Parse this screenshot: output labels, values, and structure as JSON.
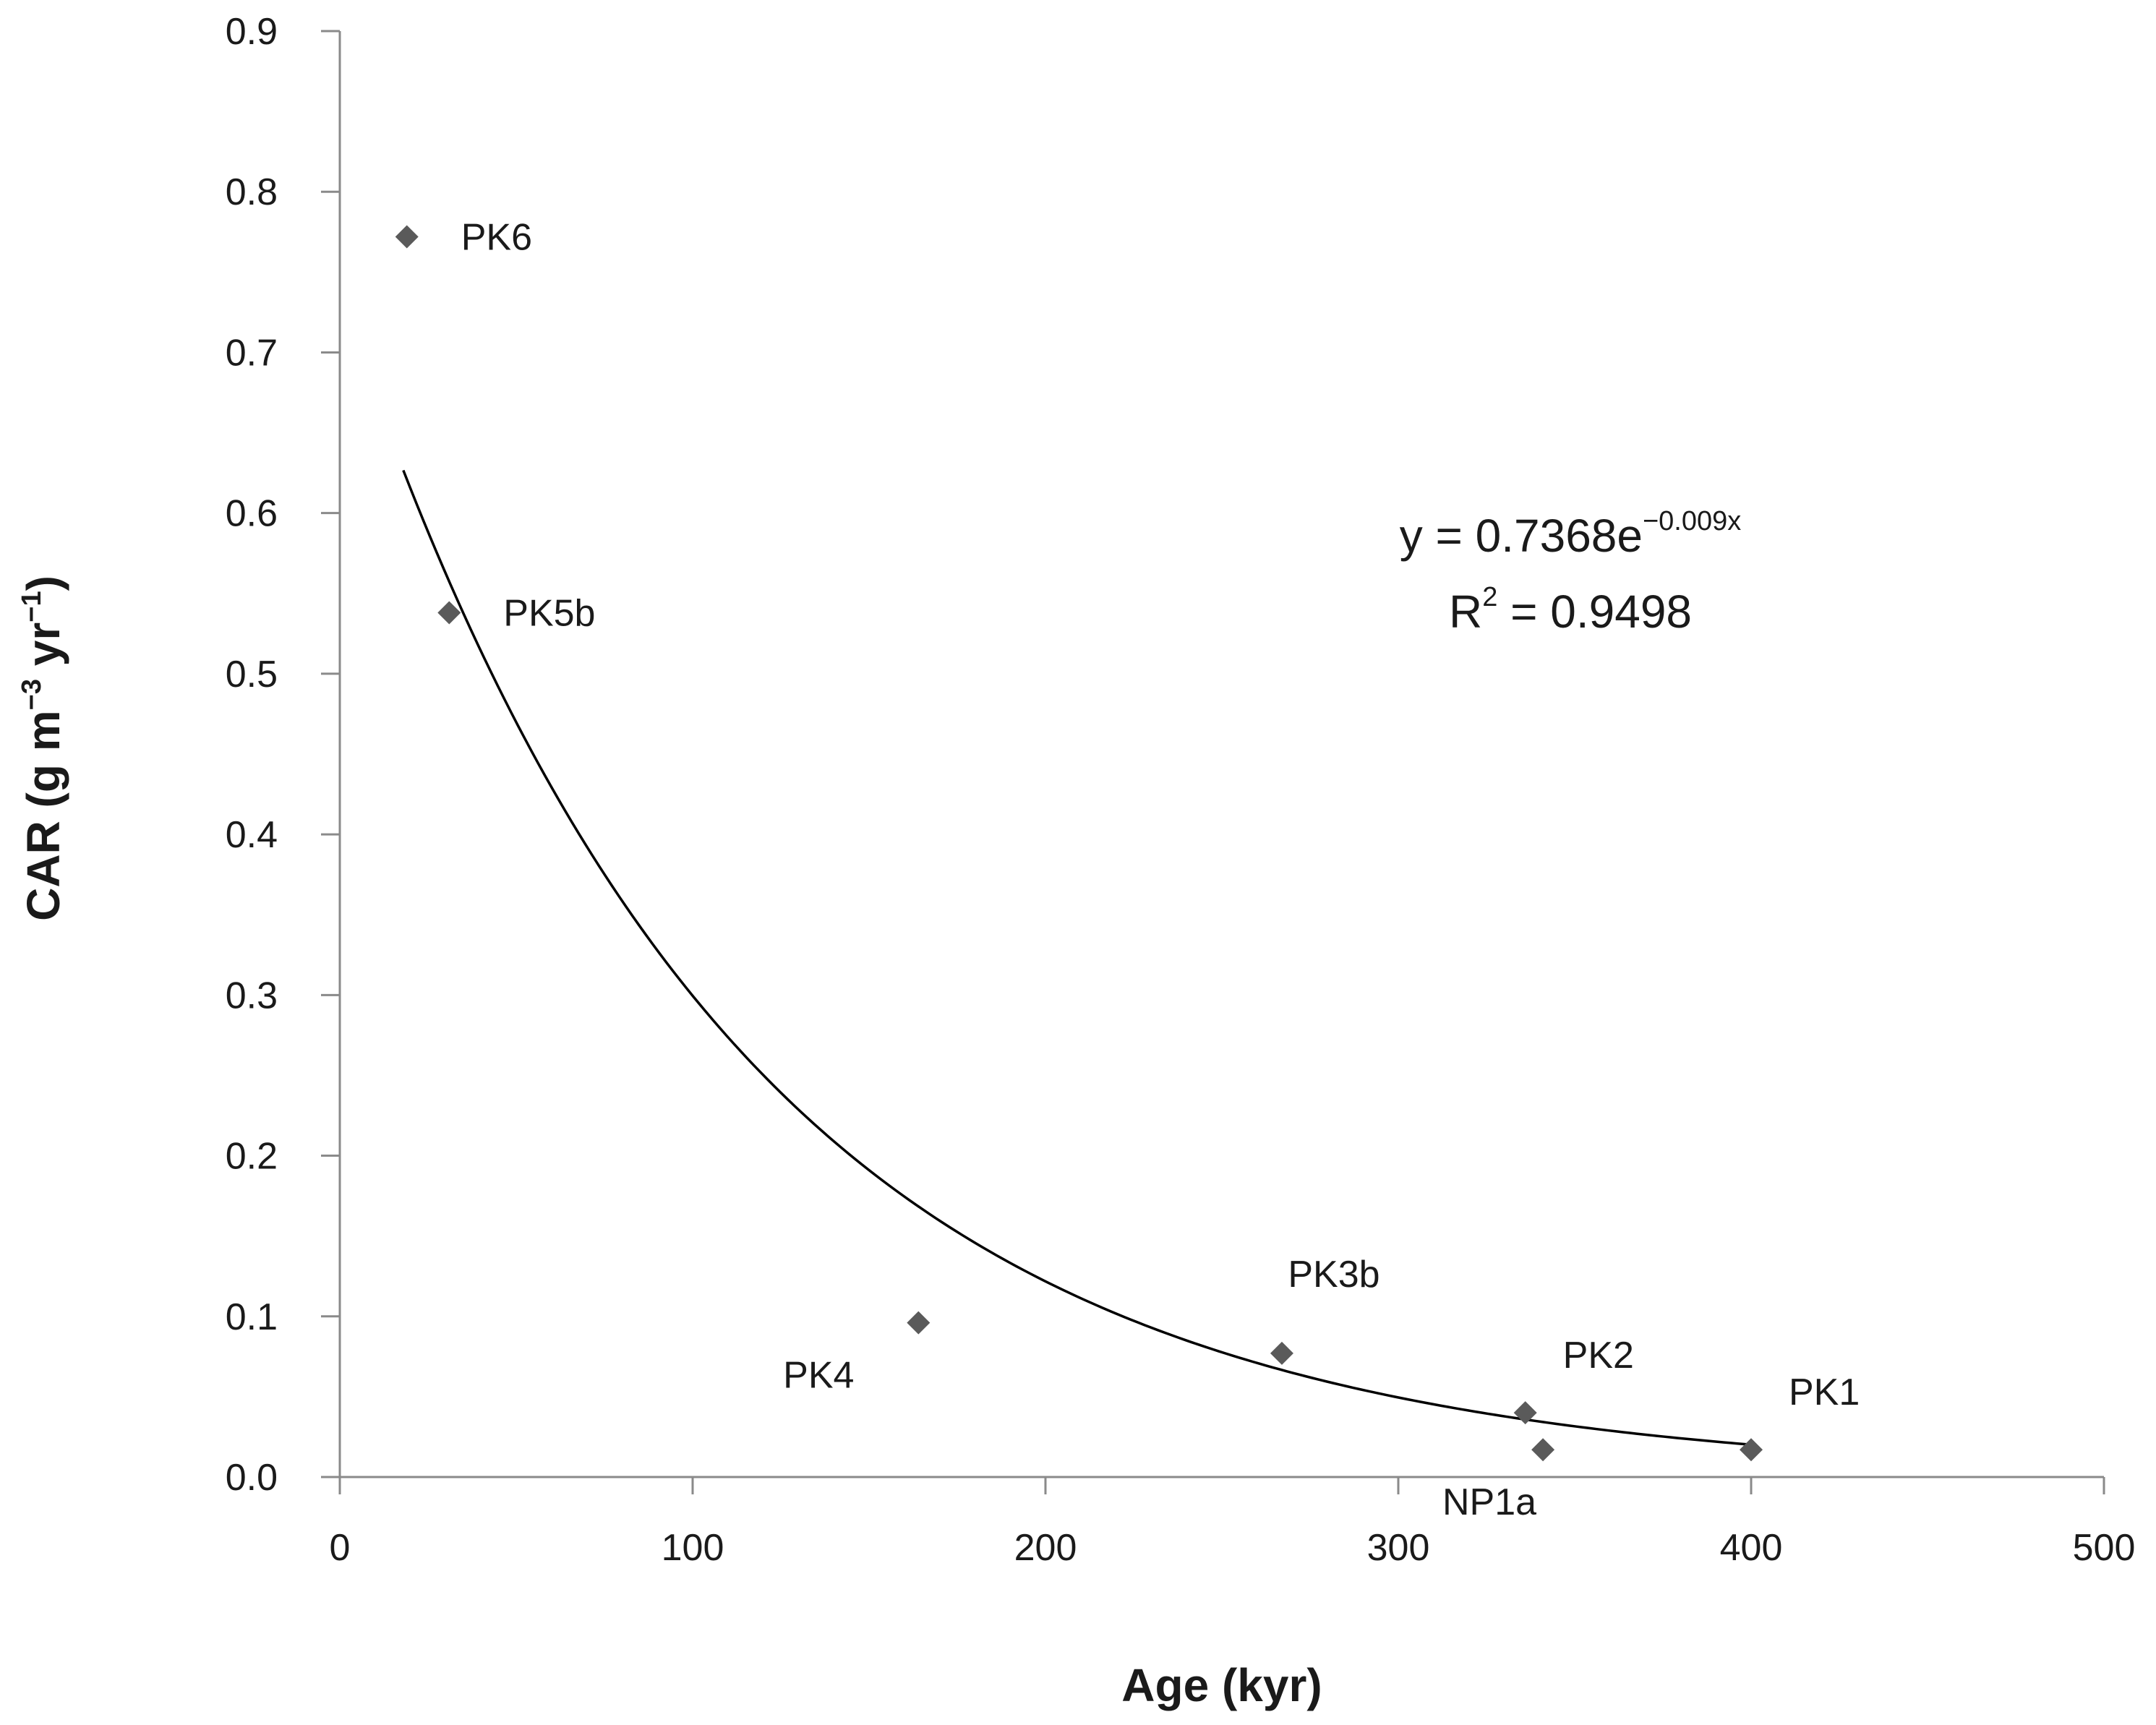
{
  "chart_data": {
    "type": "scatter",
    "title": "",
    "xlabel": "Age (kyr)",
    "ylabel_parts": {
      "prefix": "CAR (g m",
      "sup1": "−3",
      "mid": " yr",
      "sup2": "−1",
      "suffix": ")"
    },
    "xlim": [
      0,
      500
    ],
    "ylim": [
      0,
      0.9
    ],
    "x_ticks": [
      0,
      100,
      200,
      300,
      400,
      500
    ],
    "x_tick_labels": [
      "0",
      "100",
      "200",
      "300",
      "400",
      "500"
    ],
    "y_ticks": [
      0,
      0.1,
      0.2,
      0.3,
      0.4,
      0.5,
      0.6,
      0.7,
      0.8,
      0.9
    ],
    "y_tick_labels": [
      "0.0",
      "0.1",
      "0.2",
      "0.3",
      "0.4",
      "0.5",
      "0.6",
      "0.7",
      "0.8",
      "0.9"
    ],
    "grid": false,
    "points": [
      {
        "label": "PK6",
        "x": 19,
        "y": 0.772,
        "label_side": "right"
      },
      {
        "label": "PK5b",
        "x": 31,
        "y": 0.538,
        "label_side": "right"
      },
      {
        "label": "PK4",
        "x": 164,
        "y": 0.096,
        "label_side": "below-left"
      },
      {
        "label": "PK3b",
        "x": 267,
        "y": 0.077,
        "label_side": "above"
      },
      {
        "label": "PK2",
        "x": 336,
        "y": 0.04,
        "label_side": "above-right"
      },
      {
        "label": "NP1a",
        "x": 341,
        "y": 0.017,
        "label_side": "below-left"
      },
      {
        "label": "PK1",
        "x": 400,
        "y": 0.017,
        "label_side": "above-right"
      }
    ],
    "trendline": {
      "type": "exponential",
      "a": 0.7368,
      "b": -0.009,
      "x_range": [
        18,
        400
      ],
      "equation_parts": {
        "prefix": "y = 0.7368e",
        "exponent": "−0.009x"
      },
      "r2_parts": {
        "prefix": "R",
        "sup": "2",
        "suffix": " = 0.9498"
      }
    },
    "colors": {
      "marker": "#5a5a5a",
      "axis": "#8a8a8a",
      "trendline": "#000000",
      "text": "#1a1a1a"
    }
  }
}
